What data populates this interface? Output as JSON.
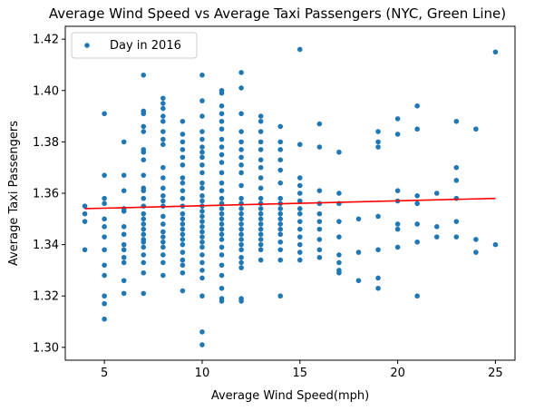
{
  "chart_data": {
    "type": "scatter",
    "title": "Average Wind Speed vs Average Taxi Passengers (NYC, Green Line)",
    "xlabel": "Average Wind Speed(mph)",
    "ylabel": "Average Taxi Passengers",
    "xlim": [
      3,
      26
    ],
    "ylim": [
      1.295,
      1.425
    ],
    "x_ticks": [
      5,
      10,
      15,
      20,
      25
    ],
    "y_ticks": [
      1.3,
      1.32,
      1.34,
      1.36,
      1.38,
      1.4,
      1.42
    ],
    "x_tick_labels": [
      "5",
      "10",
      "15",
      "20",
      "25"
    ],
    "y_tick_labels": [
      "1.30",
      "1.32",
      "1.34",
      "1.36",
      "1.38",
      "1.40",
      "1.42"
    ],
    "grid": false,
    "legend": {
      "position": "top-left",
      "entries": [
        "Day in 2016"
      ]
    },
    "series": [
      {
        "name": "Day in 2016",
        "color": "#1f77b4",
        "points": [
          [
            4,
            1.355
          ],
          [
            4,
            1.352
          ],
          [
            4,
            1.349
          ],
          [
            4,
            1.338
          ],
          [
            5,
            1.391
          ],
          [
            5,
            1.367
          ],
          [
            5,
            1.358
          ],
          [
            5,
            1.356
          ],
          [
            5,
            1.35
          ],
          [
            5,
            1.347
          ],
          [
            5,
            1.343
          ],
          [
            5,
            1.338
          ],
          [
            5,
            1.332
          ],
          [
            5,
            1.328
          ],
          [
            5,
            1.32
          ],
          [
            5,
            1.317
          ],
          [
            5,
            1.311
          ],
          [
            6,
            1.38
          ],
          [
            6,
            1.367
          ],
          [
            6,
            1.361
          ],
          [
            6,
            1.354
          ],
          [
            6,
            1.353
          ],
          [
            6,
            1.347
          ],
          [
            6,
            1.344
          ],
          [
            6,
            1.34
          ],
          [
            6,
            1.338
          ],
          [
            6,
            1.335
          ],
          [
            6,
            1.333
          ],
          [
            6,
            1.326
          ],
          [
            6,
            1.321
          ],
          [
            7,
            1.406
          ],
          [
            7,
            1.392
          ],
          [
            7,
            1.391
          ],
          [
            7,
            1.386
          ],
          [
            7,
            1.384
          ],
          [
            7,
            1.377
          ],
          [
            7,
            1.376
          ],
          [
            7,
            1.373
          ],
          [
            7,
            1.367
          ],
          [
            7,
            1.362
          ],
          [
            7,
            1.361
          ],
          [
            7,
            1.358
          ],
          [
            7,
            1.355
          ],
          [
            7,
            1.352
          ],
          [
            7,
            1.35
          ],
          [
            7,
            1.348
          ],
          [
            7,
            1.346
          ],
          [
            7,
            1.344
          ],
          [
            7,
            1.342
          ],
          [
            7,
            1.341
          ],
          [
            7,
            1.339
          ],
          [
            7,
            1.336
          ],
          [
            7,
            1.333
          ],
          [
            7,
            1.329
          ],
          [
            7,
            1.321
          ],
          [
            8,
            1.397
          ],
          [
            8,
            1.395
          ],
          [
            8,
            1.393
          ],
          [
            8,
            1.39
          ],
          [
            8,
            1.388
          ],
          [
            8,
            1.384
          ],
          [
            8,
            1.381
          ],
          [
            8,
            1.379
          ],
          [
            8,
            1.37
          ],
          [
            8,
            1.366
          ],
          [
            8,
            1.362
          ],
          [
            8,
            1.359
          ],
          [
            8,
            1.357
          ],
          [
            8,
            1.355
          ],
          [
            8,
            1.351
          ],
          [
            8,
            1.348
          ],
          [
            8,
            1.345
          ],
          [
            8,
            1.343
          ],
          [
            8,
            1.341
          ],
          [
            8,
            1.339
          ],
          [
            8,
            1.336
          ],
          [
            8,
            1.333
          ],
          [
            8,
            1.328
          ],
          [
            9,
            1.388
          ],
          [
            9,
            1.383
          ],
          [
            9,
            1.38
          ],
          [
            9,
            1.377
          ],
          [
            9,
            1.374
          ],
          [
            9,
            1.371
          ],
          [
            9,
            1.366
          ],
          [
            9,
            1.364
          ],
          [
            9,
            1.361
          ],
          [
            9,
            1.358
          ],
          [
            9,
            1.355
          ],
          [
            9,
            1.352
          ],
          [
            9,
            1.35
          ],
          [
            9,
            1.348
          ],
          [
            9,
            1.346
          ],
          [
            9,
            1.344
          ],
          [
            9,
            1.342
          ],
          [
            9,
            1.34
          ],
          [
            9,
            1.337
          ],
          [
            9,
            1.334
          ],
          [
            9,
            1.332
          ],
          [
            9,
            1.329
          ],
          [
            9,
            1.322
          ],
          [
            10,
            1.406
          ],
          [
            10,
            1.396
          ],
          [
            10,
            1.39
          ],
          [
            10,
            1.384
          ],
          [
            10,
            1.381
          ],
          [
            10,
            1.378
          ],
          [
            10,
            1.376
          ],
          [
            10,
            1.374
          ],
          [
            10,
            1.371
          ],
          [
            10,
            1.368
          ],
          [
            10,
            1.364
          ],
          [
            10,
            1.362
          ],
          [
            10,
            1.359
          ],
          [
            10,
            1.357
          ],
          [
            10,
            1.355
          ],
          [
            10,
            1.353
          ],
          [
            10,
            1.351
          ],
          [
            10,
            1.349
          ],
          [
            10,
            1.347
          ],
          [
            10,
            1.345
          ],
          [
            10,
            1.343
          ],
          [
            10,
            1.341
          ],
          [
            10,
            1.339
          ],
          [
            10,
            1.336
          ],
          [
            10,
            1.333
          ],
          [
            10,
            1.33
          ],
          [
            10,
            1.327
          ],
          [
            10,
            1.32
          ],
          [
            10,
            1.306
          ],
          [
            10,
            1.301
          ],
          [
            11,
            1.4
          ],
          [
            11,
            1.399
          ],
          [
            11,
            1.394
          ],
          [
            11,
            1.391
          ],
          [
            11,
            1.388
          ],
          [
            11,
            1.385
          ],
          [
            11,
            1.381
          ],
          [
            11,
            1.378
          ],
          [
            11,
            1.375
          ],
          [
            11,
            1.372
          ],
          [
            11,
            1.368
          ],
          [
            11,
            1.364
          ],
          [
            11,
            1.361
          ],
          [
            11,
            1.358
          ],
          [
            11,
            1.356
          ],
          [
            11,
            1.354
          ],
          [
            11,
            1.352
          ],
          [
            11,
            1.35
          ],
          [
            11,
            1.348
          ],
          [
            11,
            1.346
          ],
          [
            11,
            1.344
          ],
          [
            11,
            1.342
          ],
          [
            11,
            1.339
          ],
          [
            11,
            1.336
          ],
          [
            11,
            1.332
          ],
          [
            11,
            1.328
          ],
          [
            11,
            1.323
          ],
          [
            11,
            1.319
          ],
          [
            11,
            1.318
          ],
          [
            12,
            1.407
          ],
          [
            12,
            1.401
          ],
          [
            12,
            1.391
          ],
          [
            12,
            1.384
          ],
          [
            12,
            1.38
          ],
          [
            12,
            1.377
          ],
          [
            12,
            1.374
          ],
          [
            12,
            1.371
          ],
          [
            12,
            1.368
          ],
          [
            12,
            1.363
          ],
          [
            12,
            1.358
          ],
          [
            12,
            1.356
          ],
          [
            12,
            1.354
          ],
          [
            12,
            1.352
          ],
          [
            12,
            1.35
          ],
          [
            12,
            1.348
          ],
          [
            12,
            1.346
          ],
          [
            12,
            1.344
          ],
          [
            12,
            1.342
          ],
          [
            12,
            1.34
          ],
          [
            12,
            1.338
          ],
          [
            12,
            1.335
          ],
          [
            12,
            1.333
          ],
          [
            12,
            1.331
          ],
          [
            12,
            1.319
          ],
          [
            12,
            1.318
          ],
          [
            13,
            1.39
          ],
          [
            13,
            1.388
          ],
          [
            13,
            1.384
          ],
          [
            13,
            1.38
          ],
          [
            13,
            1.377
          ],
          [
            13,
            1.373
          ],
          [
            13,
            1.37
          ],
          [
            13,
            1.366
          ],
          [
            13,
            1.362
          ],
          [
            13,
            1.358
          ],
          [
            13,
            1.356
          ],
          [
            13,
            1.354
          ],
          [
            13,
            1.352
          ],
          [
            13,
            1.35
          ],
          [
            13,
            1.348
          ],
          [
            13,
            1.346
          ],
          [
            13,
            1.344
          ],
          [
            13,
            1.342
          ],
          [
            13,
            1.34
          ],
          [
            13,
            1.338
          ],
          [
            13,
            1.334
          ],
          [
            14,
            1.386
          ],
          [
            14,
            1.38
          ],
          [
            14,
            1.377
          ],
          [
            14,
            1.373
          ],
          [
            14,
            1.369
          ],
          [
            14,
            1.364
          ],
          [
            14,
            1.358
          ],
          [
            14,
            1.356
          ],
          [
            14,
            1.354
          ],
          [
            14,
            1.352
          ],
          [
            14,
            1.35
          ],
          [
            14,
            1.348
          ],
          [
            14,
            1.346
          ],
          [
            14,
            1.344
          ],
          [
            14,
            1.341
          ],
          [
            14,
            1.338
          ],
          [
            14,
            1.334
          ],
          [
            14,
            1.32
          ],
          [
            15,
            1.416
          ],
          [
            15,
            1.379
          ],
          [
            15,
            1.366
          ],
          [
            15,
            1.363
          ],
          [
            15,
            1.36
          ],
          [
            15,
            1.357
          ],
          [
            15,
            1.354
          ],
          [
            15,
            1.352
          ],
          [
            15,
            1.349
          ],
          [
            15,
            1.346
          ],
          [
            15,
            1.343
          ],
          [
            15,
            1.34
          ],
          [
            15,
            1.337
          ],
          [
            15,
            1.334
          ],
          [
            16,
            1.387
          ],
          [
            16,
            1.378
          ],
          [
            16,
            1.361
          ],
          [
            16,
            1.356
          ],
          [
            16,
            1.352
          ],
          [
            16,
            1.349
          ],
          [
            16,
            1.346
          ],
          [
            16,
            1.342
          ],
          [
            16,
            1.338
          ],
          [
            16,
            1.335
          ],
          [
            17,
            1.376
          ],
          [
            17,
            1.36
          ],
          [
            17,
            1.356
          ],
          [
            17,
            1.349
          ],
          [
            17,
            1.343
          ],
          [
            17,
            1.336
          ],
          [
            17,
            1.333
          ],
          [
            17,
            1.33
          ],
          [
            17,
            1.329
          ],
          [
            18,
            1.35
          ],
          [
            18,
            1.337
          ],
          [
            18,
            1.326
          ],
          [
            19,
            1.384
          ],
          [
            19,
            1.38
          ],
          [
            19,
            1.378
          ],
          [
            19,
            1.351
          ],
          [
            19,
            1.338
          ],
          [
            19,
            1.327
          ],
          [
            19,
            1.323
          ],
          [
            20,
            1.389
          ],
          [
            20,
            1.383
          ],
          [
            20,
            1.361
          ],
          [
            20,
            1.357
          ],
          [
            20,
            1.348
          ],
          [
            20,
            1.346
          ],
          [
            20,
            1.339
          ],
          [
            21,
            1.394
          ],
          [
            21,
            1.385
          ],
          [
            21,
            1.359
          ],
          [
            21,
            1.356
          ],
          [
            21,
            1.348
          ],
          [
            21,
            1.341
          ],
          [
            21,
            1.32
          ],
          [
            22,
            1.36
          ],
          [
            22,
            1.347
          ],
          [
            22,
            1.343
          ],
          [
            23,
            1.388
          ],
          [
            23,
            1.37
          ],
          [
            23,
            1.365
          ],
          [
            23,
            1.358
          ],
          [
            23,
            1.349
          ],
          [
            23,
            1.343
          ],
          [
            24,
            1.385
          ],
          [
            24,
            1.342
          ],
          [
            24,
            1.337
          ],
          [
            25,
            1.415
          ],
          [
            25,
            1.34
          ]
        ]
      }
    ],
    "trendline": {
      "color": "#ff0000",
      "x": [
        4,
        25
      ],
      "y": [
        1.354,
        1.358
      ]
    }
  }
}
